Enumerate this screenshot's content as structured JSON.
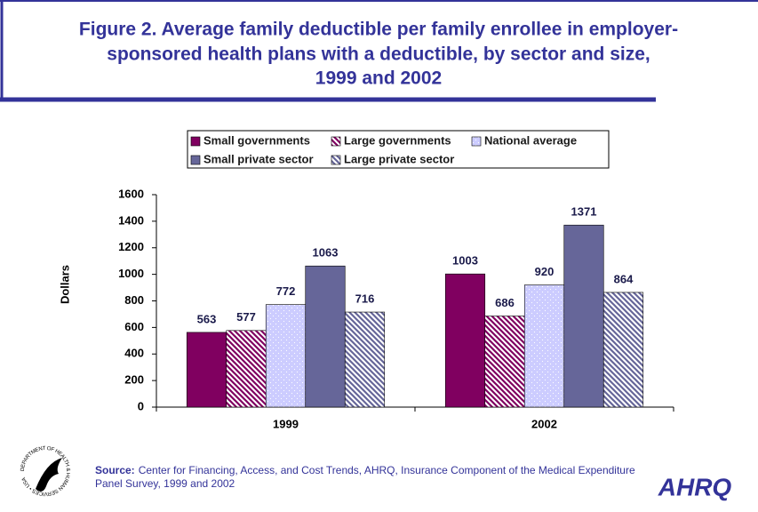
{
  "chart_data": {
    "type": "bar",
    "title": [
      "Figure 2. Average family deductible per family enrollee in employer-",
      "sponsored health plans with a deductible, by sector and size,",
      "1999 and 2002"
    ],
    "y_label": "Dollars",
    "categories": [
      "1999",
      "2002"
    ],
    "series": [
      {
        "name": "Small governments",
        "color": "#800060",
        "pattern": "solid",
        "values": [
          563,
          1003
        ]
      },
      {
        "name": "Large governments",
        "color": "#800060",
        "pattern": "hatch",
        "values": [
          577,
          686
        ]
      },
      {
        "name": "National average",
        "color": "#ccccff",
        "pattern": "dots",
        "values": [
          772,
          920
        ]
      },
      {
        "name": "Small private sector",
        "color": "#666699",
        "pattern": "solid",
        "values": [
          1063,
          1371
        ]
      },
      {
        "name": "Large private sector",
        "color": "#666699",
        "pattern": "hatch",
        "values": [
          716,
          864
        ]
      }
    ],
    "ylim": [
      0,
      1600
    ],
    "yticks": [
      0,
      200,
      400,
      600,
      800,
      1000,
      1200,
      1400,
      1600
    ],
    "source_label": "Source:",
    "source_text": [
      "Center for Financing, Access, and Cost Trends, AHRQ, Insurance Component of the Medical Expenditure",
      "Panel Survey, 1999 and  2002"
    ],
    "seal_text": "DEPARTMENT OF HEALTH & HUMAN SERVICES • USA",
    "logo": "AHRQ"
  }
}
